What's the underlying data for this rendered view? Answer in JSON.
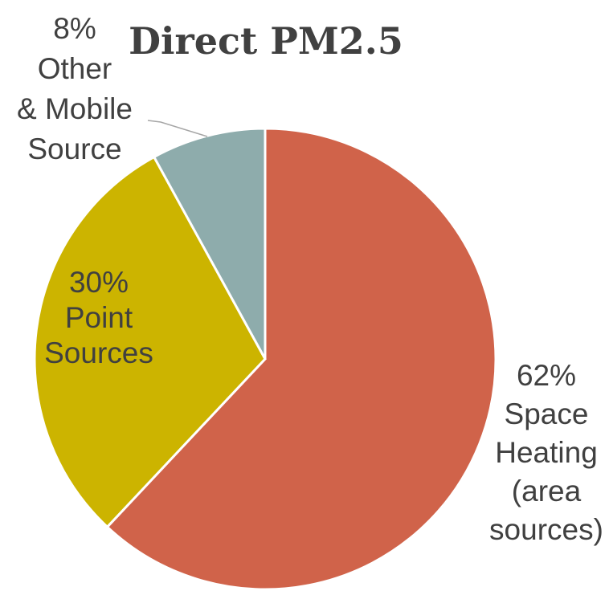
{
  "chart_data": {
    "type": "pie",
    "title": "Direct PM2.5",
    "slices": [
      {
        "name": "Space Heating (area sources)",
        "value": 62,
        "color": "#d0634a",
        "label_lines": [
          "62%",
          "Space",
          "Heating",
          "(area",
          "sources)"
        ]
      },
      {
        "name": "Point Sources",
        "value": 30,
        "color": "#ccb400",
        "label_lines": [
          "30%",
          "Point",
          "Sources"
        ]
      },
      {
        "name": "Other & Mobile Source",
        "value": 8,
        "color": "#8eacac",
        "label_lines": [
          "8%",
          "Other",
          "& Mobile",
          "Source"
        ]
      }
    ],
    "start_angle": "12 o'clock",
    "direction": "clockwise",
    "legend": "none"
  }
}
